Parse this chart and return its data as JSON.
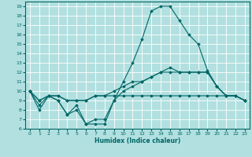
{
  "title": "",
  "xlabel": "Humidex (Indice chaleur)",
  "ylabel": "",
  "bg_color": "#b2e0e0",
  "grid_color": "#ffffff",
  "line_color": "#006666",
  "xlim": [
    -0.5,
    23.5
  ],
  "ylim": [
    6,
    19.5
  ],
  "xticks": [
    0,
    1,
    2,
    3,
    4,
    5,
    6,
    7,
    8,
    9,
    10,
    11,
    12,
    13,
    14,
    15,
    16,
    17,
    18,
    19,
    20,
    21,
    22,
    23
  ],
  "yticks": [
    6,
    7,
    8,
    9,
    10,
    11,
    12,
    13,
    14,
    15,
    16,
    17,
    18,
    19
  ],
  "series": [
    [
      10,
      8,
      9.5,
      9,
      7.5,
      8.5,
      6.5,
      6.5,
      6.5,
      9,
      11,
      13,
      15.5,
      18.5,
      19,
      19,
      17.5,
      16,
      15,
      12.2,
      10.5,
      9.5,
      9.5,
      9
    ],
    [
      10,
      8.5,
      9.5,
      9,
      7.5,
      8,
      6.5,
      7,
      7,
      9,
      10,
      10.5,
      11,
      11.5,
      12,
      12,
      12,
      12,
      12,
      12,
      10.5,
      9.5,
      9.5,
      9
    ],
    [
      10,
      9,
      9.5,
      9.5,
      9,
      9,
      9,
      9.5,
      9.5,
      10,
      10.5,
      11,
      11,
      11.5,
      12,
      12.5,
      12,
      12,
      12,
      12,
      10.5,
      9.5,
      9.5,
      9
    ],
    [
      10,
      9,
      9.5,
      9.5,
      9,
      9,
      9,
      9.5,
      9.5,
      9.5,
      9.5,
      9.5,
      9.5,
      9.5,
      9.5,
      9.5,
      9.5,
      9.5,
      9.5,
      9.5,
      9.5,
      9.5,
      9.5,
      9
    ]
  ]
}
